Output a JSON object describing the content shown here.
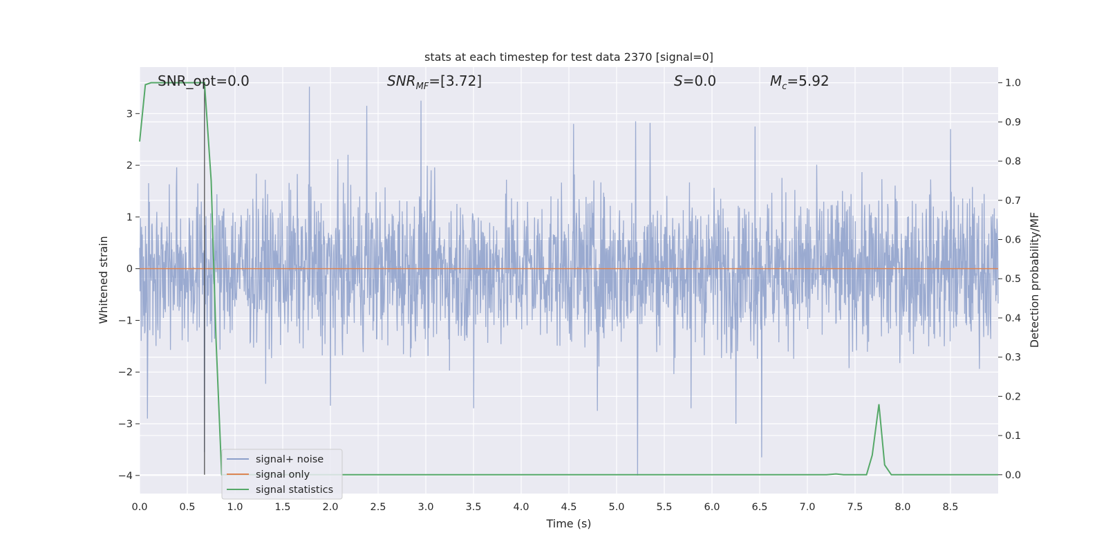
{
  "chart_data": {
    "type": "line",
    "title": "stats at each timestep for test data 2370 [signal=0]",
    "xlabel": "Time (s)",
    "ylabel": "Whitened strain",
    "y2label": "Detection probability/MF",
    "xlim": [
      0,
      9
    ],
    "ylim": [
      -4.35,
      3.9
    ],
    "y2lim": [
      -0.048,
      1.04
    ],
    "grid": true,
    "legend_position": "lower-left",
    "x_ticks": [
      "0.0",
      "0.5",
      "1.0",
      "1.5",
      "2.0",
      "2.5",
      "3.0",
      "3.5",
      "4.0",
      "4.5",
      "5.0",
      "5.5",
      "6.0",
      "6.5",
      "7.0",
      "7.5",
      "8.0",
      "8.5"
    ],
    "y_ticks": [
      "3",
      "2",
      "1",
      "0",
      "−1",
      "−2",
      "−3",
      "−4"
    ],
    "y2_ticks": [
      "1.0",
      "0.9",
      "0.8",
      "0.7",
      "0.6",
      "0.5",
      "0.4",
      "0.3",
      "0.2",
      "0.1",
      "0.0"
    ],
    "annotations": [
      {
        "text": "SNR_opt=0.0"
      },
      {
        "base": "SNR",
        "sub": "MF",
        "rest": "=[3.72]"
      },
      {
        "base": "S",
        "sub": "",
        "rest": "=0.0"
      },
      {
        "base": "M",
        "sub": "c",
        "rest": "=5.92"
      }
    ],
    "vline_x": 0.68,
    "series": [
      {
        "name": "signal+ noise",
        "color": "#8c9fca",
        "axis": "left",
        "kind": "noise",
        "envelope": [
          -2.0,
          2.0
        ],
        "peaks_up": [
          [
            1.78,
            3.52
          ],
          [
            2.95,
            3.25
          ],
          [
            2.38,
            3.15
          ],
          [
            5.2,
            2.85
          ],
          [
            5.35,
            2.82
          ],
          [
            4.55,
            2.8
          ],
          [
            6.45,
            2.75
          ],
          [
            8.5,
            2.7
          ]
        ],
        "peaks_down": [
          [
            5.22,
            -4.0
          ],
          [
            6.52,
            -3.65
          ],
          [
            0.68,
            -3.55
          ],
          [
            0.08,
            -2.9
          ],
          [
            6.25,
            -3.0
          ],
          [
            4.8,
            -2.75
          ],
          [
            3.5,
            -2.7
          ],
          [
            2.0,
            -2.65
          ],
          [
            5.78,
            -2.7
          ]
        ]
      },
      {
        "name": "signal only",
        "color": "#dd8452",
        "axis": "left",
        "x": [
          0,
          9
        ],
        "y": [
          0,
          0
        ]
      },
      {
        "name": "signal statistics",
        "color": "#55a868",
        "axis": "right",
        "x": [
          0.0,
          0.06,
          0.12,
          0.2,
          0.3,
          0.4,
          0.5,
          0.6,
          0.68,
          0.75,
          0.8,
          0.86,
          0.95,
          1.2,
          2.0,
          3.0,
          4.0,
          5.0,
          6.0,
          7.0,
          7.2,
          7.3,
          7.38,
          7.45,
          7.55,
          7.62,
          7.68,
          7.75,
          7.81,
          7.88,
          7.95,
          8.2,
          8.5,
          9.0
        ],
        "y": [
          0.85,
          0.995,
          1.0,
          1.0,
          1.0,
          1.0,
          1.0,
          1.0,
          1.0,
          0.75,
          0.35,
          0.0,
          0.0,
          0.0,
          0.0,
          0.0,
          0.0,
          0.0,
          0.0,
          0.0,
          0.0,
          0.002,
          0.0,
          0.0,
          0.0,
          0.0,
          0.05,
          0.18,
          0.025,
          0.0,
          0.0,
          0.0,
          0.0,
          0.0
        ]
      }
    ]
  }
}
